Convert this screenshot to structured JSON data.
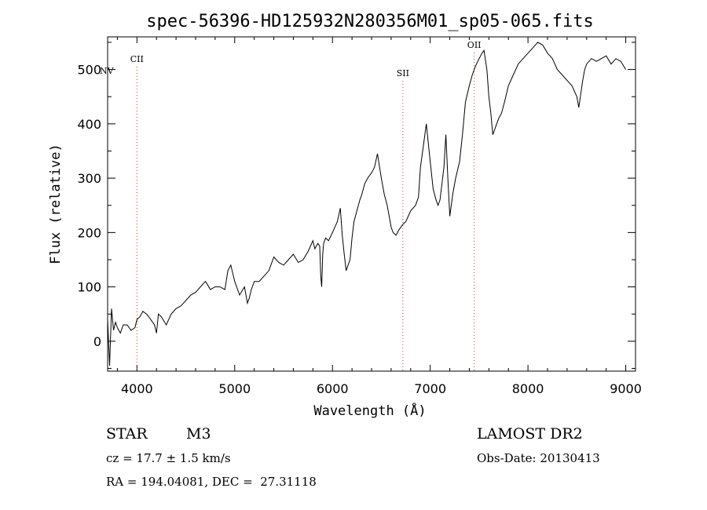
{
  "chart_data": {
    "type": "line",
    "title": "spec-56396-HD125932N280356M01_sp05-065.fits",
    "xlabel": "Wavelength (Å)",
    "ylabel": "Flux (relative)",
    "xlim": [
      3700,
      9100
    ],
    "ylim": [
      -55,
      560
    ],
    "xticks": [
      "4000",
      "5000",
      "6000",
      "7000",
      "8000",
      "9000"
    ],
    "xtick_values": [
      4000,
      5000,
      6000,
      7000,
      8000,
      9000
    ],
    "yticks": [
      "0",
      "100",
      "200",
      "300",
      "400",
      "500"
    ],
    "ytick_values": [
      0,
      100,
      200,
      300,
      400,
      500
    ],
    "grid": false,
    "line_color": "#000000",
    "marker_color": "#cc3333",
    "series": [
      {
        "x": [
          3700,
          3720,
          3740,
          3760,
          3780,
          3800,
          3830,
          3860,
          3900,
          3940,
          3980,
          4000,
          4030,
          4060,
          4100,
          4140,
          4180,
          4200,
          4220,
          4250,
          4300,
          4350,
          4400,
          4450,
          4500,
          4550,
          4600,
          4650,
          4700,
          4720,
          4750,
          4800,
          4850,
          4900,
          4930,
          4960,
          5000,
          5050,
          5100,
          5130,
          5150,
          5170,
          5200,
          5250,
          5300,
          5350,
          5400,
          5450,
          5500,
          5550,
          5600,
          5650,
          5700,
          5750,
          5800,
          5820,
          5850,
          5870,
          5880,
          5890,
          5900,
          5910,
          5930,
          5960,
          6000,
          6050,
          6080,
          6100,
          6120,
          6140,
          6160,
          6180,
          6200,
          6220,
          6250,
          6280,
          6300,
          6330,
          6360,
          6400,
          6430,
          6460,
          6500,
          6530,
          6560,
          6580,
          6600,
          6620,
          6650,
          6680,
          6700,
          6720,
          6750,
          6800,
          6850,
          6880,
          6900,
          6930,
          6960,
          7000,
          7030,
          7060,
          7080,
          7100,
          7120,
          7140,
          7160,
          7180,
          7200,
          7230,
          7260,
          7300,
          7330,
          7360,
          7400,
          7430,
          7460,
          7500,
          7530,
          7550,
          7580,
          7600,
          7620,
          7640,
          7660,
          7680,
          7700,
          7730,
          7760,
          7800,
          7850,
          7900,
          7950,
          8000,
          8050,
          8100,
          8150,
          8200,
          8250,
          8300,
          8350,
          8400,
          8450,
          8500,
          8520,
          8540,
          8560,
          8580,
          8600,
          8650,
          8700,
          8750,
          8800,
          8850,
          8900,
          8950,
          9000
        ],
        "y": [
          40,
          -45,
          60,
          20,
          35,
          25,
          15,
          30,
          30,
          20,
          25,
          40,
          45,
          55,
          50,
          40,
          30,
          15,
          50,
          45,
          30,
          50,
          60,
          65,
          75,
          85,
          90,
          100,
          110,
          105,
          95,
          100,
          100,
          95,
          130,
          140,
          110,
          85,
          100,
          70,
          80,
          95,
          110,
          110,
          120,
          130,
          155,
          145,
          140,
          150,
          160,
          145,
          150,
          165,
          185,
          170,
          180,
          175,
          120,
          100,
          160,
          180,
          190,
          185,
          200,
          220,
          245,
          195,
          160,
          130,
          140,
          150,
          190,
          220,
          240,
          260,
          270,
          290,
          300,
          310,
          320,
          345,
          300,
          270,
          250,
          230,
          210,
          200,
          195,
          205,
          210,
          215,
          220,
          240,
          250,
          265,
          320,
          360,
          400,
          330,
          280,
          260,
          250,
          260,
          290,
          320,
          380,
          300,
          230,
          270,
          300,
          330,
          380,
          440,
          470,
          490,
          505,
          520,
          530,
          535,
          500,
          450,
          420,
          380,
          390,
          400,
          410,
          420,
          440,
          470,
          490,
          510,
          520,
          530,
          540,
          550,
          545,
          530,
          520,
          500,
          490,
          480,
          470,
          450,
          430,
          455,
          480,
          500,
          510,
          520,
          515,
          520,
          525,
          510,
          520,
          515,
          500
        ]
      }
    ],
    "line_markers": [
      {
        "label": "NV",
        "x": 3770
      },
      {
        "label": "CII",
        "x": 4000
      },
      {
        "label": "SII",
        "x": 6720
      },
      {
        "label": "OII",
        "x": 7450
      }
    ]
  },
  "info": {
    "object_type": "STAR",
    "subclass": "M3",
    "survey": "LAMOST DR2",
    "cz": "cz = 17.7 ± 1.5 km/s",
    "obs_date": "Obs-Date: 20130413",
    "radec": "RA = 194.04081, DEC =  27.31118"
  }
}
